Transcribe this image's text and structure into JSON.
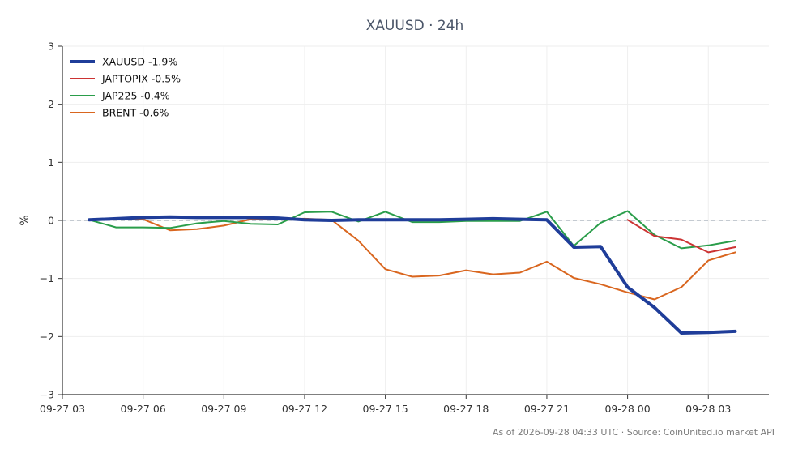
{
  "footer": "As of 2026-09-28 04:33 UTC · Source: CoinUnited.io market API",
  "chart_data": {
    "type": "line",
    "title": "XAUUSD · 24h",
    "xlabel": "",
    "ylabel": "%",
    "ylim": [
      -3,
      3
    ],
    "yticks": [
      -3,
      -2,
      -1,
      0,
      1,
      2,
      3
    ],
    "ytick_labels": [
      "−3",
      "−2",
      "−1",
      "0",
      "1",
      "2",
      "3"
    ],
    "xlim": [
      "2026-09-27 03:00",
      "2026-09-28 05:15"
    ],
    "xticks": [
      "2026-09-27 03:00",
      "2026-09-27 06:00",
      "2026-09-27 09:00",
      "2026-09-27 12:00",
      "2026-09-27 15:00",
      "2026-09-27 18:00",
      "2026-09-27 21:00",
      "2026-09-28 00:00",
      "2026-09-28 03:00"
    ],
    "xtick_labels": [
      "09-27 03",
      "09-27 06",
      "09-27 09",
      "09-27 12",
      "09-27 15",
      "09-27 18",
      "09-27 21",
      "09-28 00",
      "09-28 03"
    ],
    "zero_line": true,
    "grid": true,
    "legend": "top-left",
    "series": [
      {
        "name": "XAUUSD -1.9%",
        "color": "#1f3d99",
        "x": [
          "2026-09-27 04:00",
          "2026-09-27 05:00",
          "2026-09-27 06:00",
          "2026-09-27 07:00",
          "2026-09-27 08:00",
          "2026-09-27 09:00",
          "2026-09-27 10:00",
          "2026-09-27 11:00",
          "2026-09-27 12:00",
          "2026-09-27 13:00",
          "2026-09-27 14:00",
          "2026-09-27 15:00",
          "2026-09-27 16:00",
          "2026-09-27 17:00",
          "2026-09-27 18:00",
          "2026-09-27 19:00",
          "2026-09-27 20:00",
          "2026-09-27 21:00",
          "2026-09-27 22:00",
          "2026-09-27 23:00",
          "2026-09-28 00:00",
          "2026-09-28 01:00",
          "2026-09-28 02:00",
          "2026-09-28 03:00",
          "2026-09-28 04:00"
        ],
        "values": [
          0.01,
          0.03,
          0.05,
          0.06,
          0.05,
          0.05,
          0.05,
          0.04,
          0.01,
          0.0,
          0.01,
          0.01,
          0.01,
          0.01,
          0.02,
          0.03,
          0.02,
          0.01,
          -0.46,
          -0.45,
          -1.15,
          -1.5,
          -1.94,
          -1.93,
          -1.91
        ]
      },
      {
        "name": "JAPTOPIX -0.5%",
        "color": "#cc3333",
        "x": [
          "2026-09-28 00:00",
          "2026-09-28 01:00",
          "2026-09-28 02:00",
          "2026-09-28 03:00",
          "2026-09-28 04:00"
        ],
        "values": [
          0.01,
          -0.27,
          -0.33,
          -0.55,
          -0.46
        ]
      },
      {
        "name": "JAP225 -0.4%",
        "color": "#2a9d4a",
        "x": [
          "2026-09-27 04:00",
          "2026-09-27 05:00",
          "2026-09-27 06:00",
          "2026-09-27 07:00",
          "2026-09-27 08:00",
          "2026-09-27 09:00",
          "2026-09-27 10:00",
          "2026-09-27 11:00",
          "2026-09-27 12:00",
          "2026-09-27 13:00",
          "2026-09-27 14:00",
          "2026-09-27 15:00",
          "2026-09-27 16:00",
          "2026-09-27 17:00",
          "2026-09-27 18:00",
          "2026-09-27 19:00",
          "2026-09-27 20:00",
          "2026-09-27 21:00",
          "2026-09-27 22:00",
          "2026-09-27 23:00",
          "2026-09-28 00:00",
          "2026-09-28 01:00",
          "2026-09-28 02:00",
          "2026-09-28 03:00",
          "2026-09-28 04:00"
        ],
        "values": [
          0.01,
          -0.12,
          -0.12,
          -0.13,
          -0.05,
          -0.01,
          -0.06,
          -0.07,
          0.14,
          0.15,
          -0.02,
          0.15,
          -0.03,
          -0.03,
          -0.01,
          -0.01,
          -0.01,
          0.15,
          -0.44,
          -0.04,
          0.16,
          -0.25,
          -0.48,
          -0.43,
          -0.35
        ]
      },
      {
        "name": "BRENT -0.6%",
        "color": "#d9661f",
        "x": [
          "2026-09-27 04:00",
          "2026-09-27 05:00",
          "2026-09-27 06:00",
          "2026-09-27 07:00",
          "2026-09-27 08:00",
          "2026-09-27 09:00",
          "2026-09-27 10:00",
          "2026-09-27 11:00",
          "2026-09-27 12:00",
          "2026-09-27 13:00",
          "2026-09-27 14:00",
          "2026-09-27 15:00",
          "2026-09-27 16:00",
          "2026-09-27 17:00",
          "2026-09-27 18:00",
          "2026-09-27 19:00",
          "2026-09-27 20:00",
          "2026-09-27 21:00",
          "2026-09-27 22:00",
          "2026-09-27 23:00",
          "2026-09-28 00:00",
          "2026-09-28 01:00",
          "2026-09-28 02:00",
          "2026-09-28 03:00",
          "2026-09-28 04:00"
        ],
        "values": [
          0.02,
          0.02,
          0.02,
          -0.17,
          -0.15,
          -0.09,
          0.02,
          0.02,
          0.03,
          0.01,
          -0.35,
          -0.84,
          -0.97,
          -0.95,
          -0.86,
          -0.93,
          -0.9,
          -0.71,
          -0.99,
          -1.1,
          -1.24,
          -1.36,
          -1.15,
          -0.69,
          -0.55
        ]
      }
    ]
  }
}
